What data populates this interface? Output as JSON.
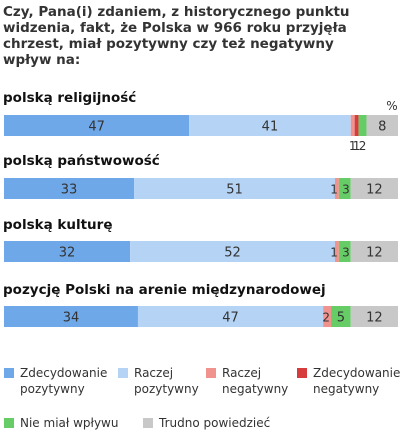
{
  "chart_data": {
    "type": "bar",
    "orientation": "horizontal",
    "stacked": true,
    "title": "Czy, Pana(i) zdaniem, z historycznego punktu widzenia, fakt, że Polska w 966 roku przyjęła chrzest, miał pozytywny czy też negatywny wpływ na:",
    "unit": "%",
    "title_lines": [
      "Czy, Pana(i) zdaniem, z historycznego punktu",
      "widzenia, fakt, że Polska w 966 roku przyjęła",
      "chrzest, miał pozytywny czy też negatywny",
      "wpływ na:"
    ],
    "categories": [
      "polską religijność",
      "polską państwowość",
      "polską kulturę",
      "pozycję Polski na arenie międzynarodowej"
    ],
    "series": [
      {
        "name": "Zdecydowanie pozytywny",
        "legend_lines": [
          "Zdecydowanie",
          "pozytywny"
        ],
        "color": "#6fa8e8",
        "values": [
          47,
          33,
          32,
          34
        ]
      },
      {
        "name": "Raczej pozytywny",
        "legend_lines": [
          "Raczej",
          "pozytywny"
        ],
        "color": "#b5d3f5",
        "values": [
          41,
          51,
          52,
          47
        ]
      },
      {
        "name": "Raczej negatywny",
        "legend_lines": [
          "Raczej",
          "negatywny"
        ],
        "color": "#f0938f",
        "values": [
          1,
          1,
          1,
          2
        ]
      },
      {
        "name": "Zdecydowanie negatywny",
        "legend_lines": [
          "Zdecydowanie",
          "negatywny"
        ],
        "color": "#d63c3c",
        "values": [
          1,
          0,
          0,
          0
        ]
      },
      {
        "name": "Nie miał wpływu",
        "legend_lines": [
          "Nie miał wpływu"
        ],
        "color": "#66cc66",
        "values": [
          2,
          3,
          3,
          5
        ]
      },
      {
        "name": "Trudno powiedzieć",
        "legend_lines": [
          "Trudno powiedzieć"
        ],
        "color": "#c8c8c8",
        "values": [
          8,
          12,
          12,
          12
        ]
      }
    ]
  }
}
